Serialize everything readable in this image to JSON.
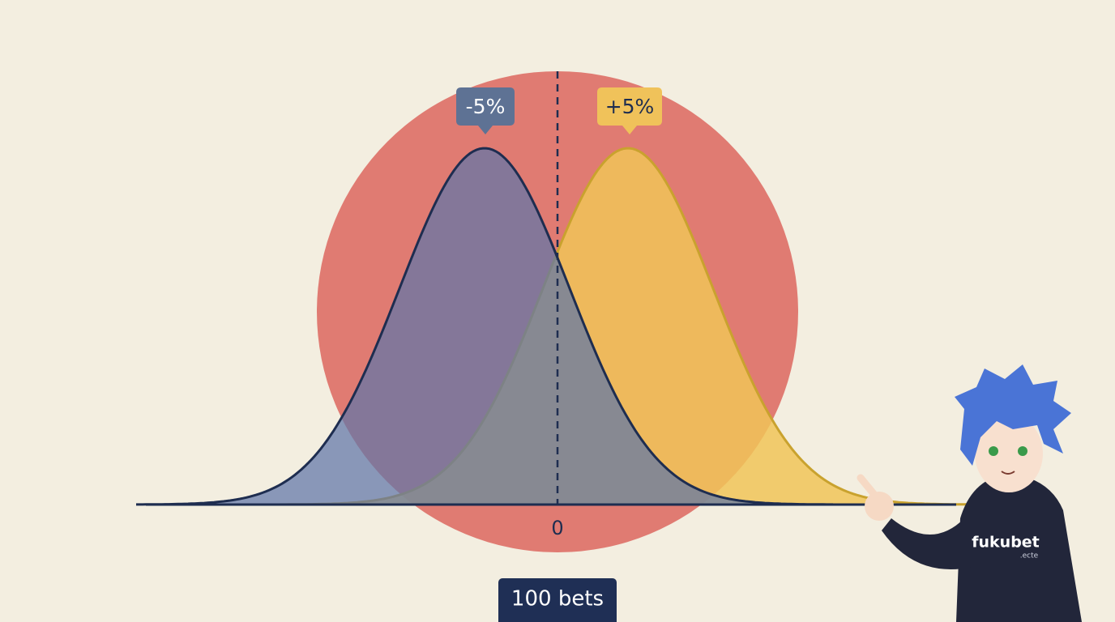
{
  "labels": {
    "left": "-5%",
    "right": "+5%",
    "zero": "0",
    "bets": "100 bets"
  },
  "hoodie": {
    "brand": "fukubet",
    "sub": ".ecte"
  }
}
